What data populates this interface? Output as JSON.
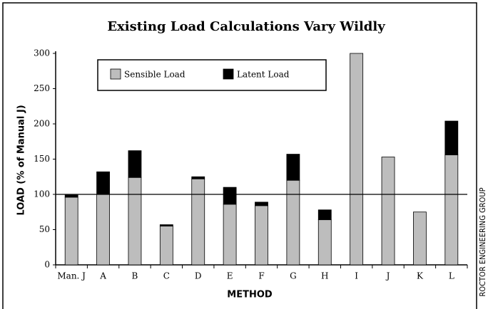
{
  "chart_data": {
    "type": "stacked_bar",
    "title": "Existing Load Calculations Vary Wildly",
    "x_label": "METHOD",
    "y_label": "LOAD (% of Manual J)",
    "credit": "ROCTOR ENGINEERING GROUP",
    "categories": [
      "Man. J",
      "A",
      "B",
      "C",
      "D",
      "E",
      "F",
      "G",
      "H",
      "I",
      "J",
      "K",
      "L"
    ],
    "series": [
      {
        "name": "Sensible Load",
        "color": "#bdbdbd",
        "values": [
          96,
          100,
          124,
          55,
          122,
          86,
          84,
          120,
          64,
          300,
          153,
          75,
          156
        ]
      },
      {
        "name": "Latent Load",
        "color": "#000000",
        "values": [
          3,
          32,
          38,
          2,
          3,
          24,
          5,
          37,
          14,
          0,
          0,
          0,
          48
        ]
      }
    ],
    "ylim": [
      0,
      300
    ],
    "yticks": [
      0,
      50,
      100,
      150,
      200,
      250,
      300
    ],
    "reference_line": 100,
    "legend": "top-left"
  }
}
